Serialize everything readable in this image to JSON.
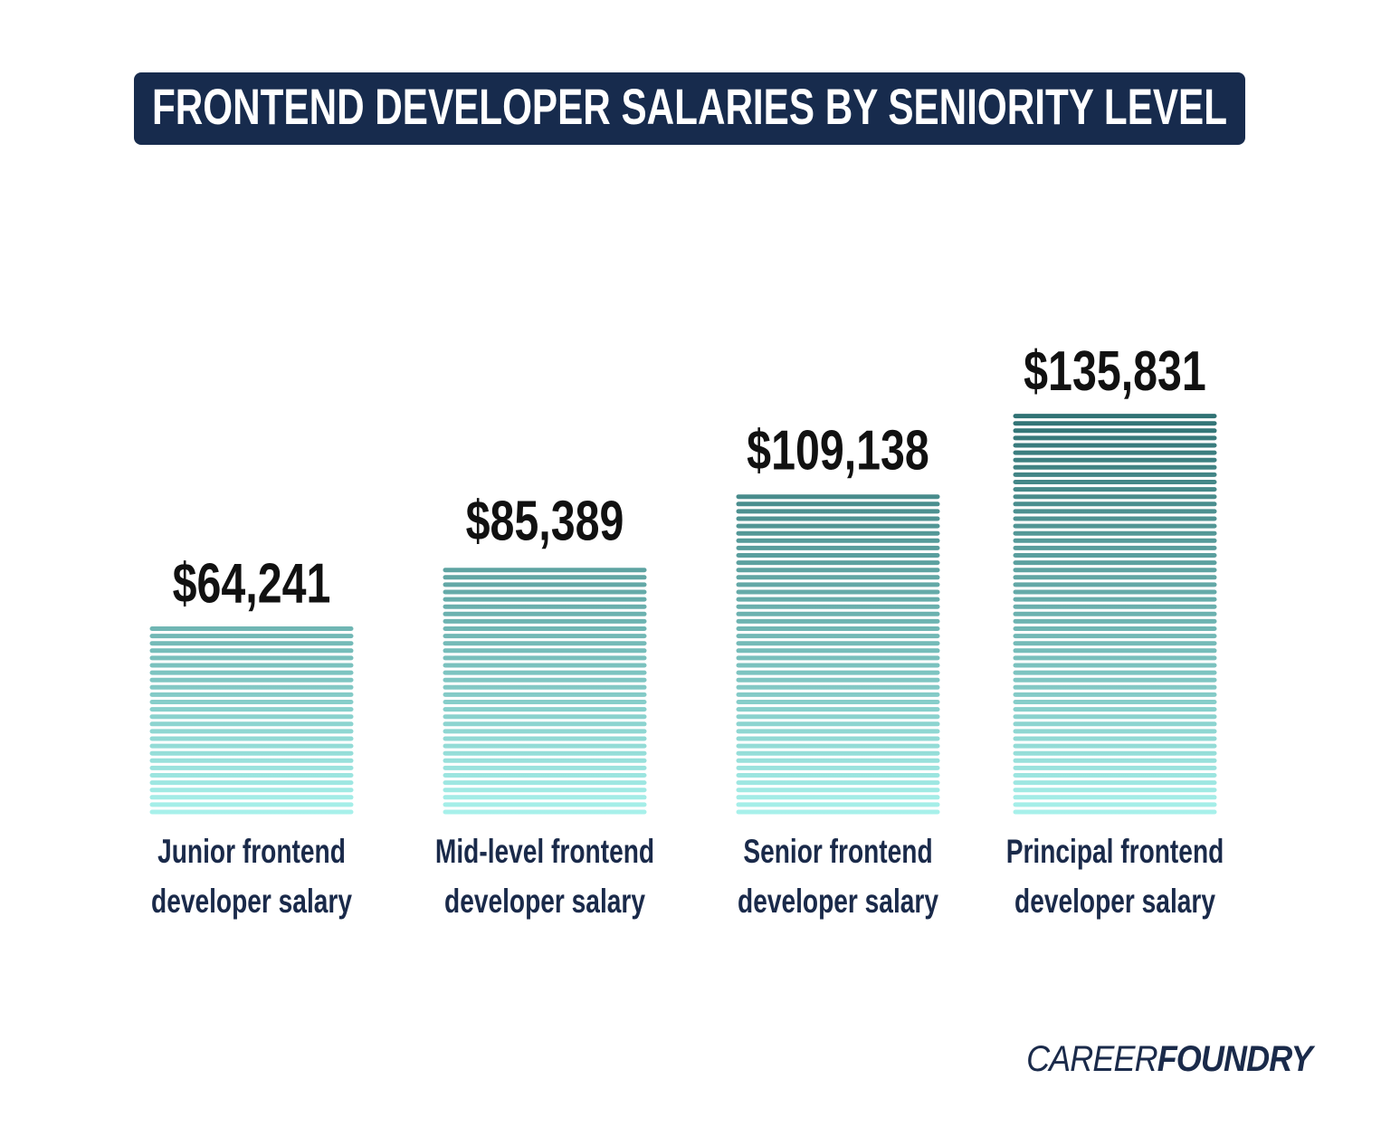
{
  "chart_data": {
    "type": "bar",
    "title": "FRONTEND DEVELOPER SALARIES BY SENIORITY LEVEL",
    "categories": [
      "Junior frontend developer salary",
      "Mid-level frontend developer salary",
      "Senior frontend developer salary",
      "Principal frontend developer salary"
    ],
    "values": [
      64241,
      85389,
      109138,
      135831
    ],
    "value_labels": [
      "$64,241",
      "$85,389",
      "$109,138",
      "$135,831"
    ],
    "colors": [
      "#2f7173",
      "#a8f1eb"
    ]
  },
  "logo": {
    "light": "CAREER",
    "bold": "FOUNDRY"
  }
}
